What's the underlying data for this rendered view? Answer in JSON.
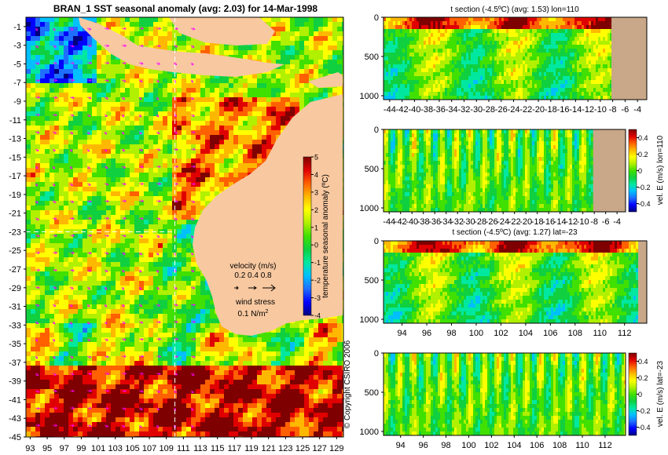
{
  "colors": {
    "land": "#f8c8a0",
    "land_section": "#c8a888",
    "bg": "#ffffff",
    "text": "#000000",
    "dashed": "#ffffff",
    "vector": "#ff00ff",
    "vector_key": "#000000",
    "palette": [
      "#00007f",
      "#0000ff",
      "#1f6fff",
      "#00c0ff",
      "#00e8a0",
      "#10d040",
      "#40e000",
      "#b0f000",
      "#ffff00",
      "#ffb800",
      "#ff6000",
      "#e00000",
      "#7f0000"
    ]
  },
  "chart_data": [
    {
      "id": "map",
      "type": "heatmap",
      "title": "BRAN_1  SST seasonal anomaly (avg: 2.03) for 14-Mar-1998",
      "y_ticks": [
        "-1",
        "-3",
        "-5",
        "-7",
        "-9",
        "-11",
        "-13",
        "-15",
        "-17",
        "-19",
        "-21",
        "-23",
        "-25",
        "-27",
        "-29",
        "-31",
        "-33",
        "-35",
        "-37",
        "-39",
        "-41",
        "-43",
        "-45"
      ],
      "y_tick_values": [
        -1,
        -3,
        -5,
        -7,
        -9,
        -11,
        -13,
        -15,
        -17,
        -19,
        -21,
        -23,
        -25,
        -27,
        -29,
        -31,
        -33,
        -35,
        -37,
        -39,
        -41,
        -43,
        -45
      ],
      "x_ticks": [
        "93",
        "95",
        "97",
        "99",
        "101",
        "103",
        "105",
        "107",
        "109",
        "111",
        "113",
        "115",
        "117",
        "119",
        "121",
        "123",
        "125",
        "127",
        "129"
      ],
      "x_tick_values": [
        93,
        95,
        97,
        99,
        101,
        103,
        105,
        107,
        109,
        111,
        113,
        115,
        117,
        119,
        121,
        123,
        125,
        127,
        129
      ],
      "xlim": [
        92.5,
        129.8
      ],
      "ylim": [
        -45,
        0
      ],
      "dashed_lon": 110,
      "dashed_lat": -23,
      "colorbar": {
        "label": "temperature seasonal anomaly (ºC)",
        "ticks": [
          "5",
          "4",
          "3",
          "2",
          "1",
          "0",
          "-1",
          "-2",
          "-3",
          "-4"
        ],
        "tick_values": [
          5,
          4,
          3,
          2,
          1,
          0,
          -1,
          -2,
          -3,
          -4
        ],
        "range": [
          -4,
          5
        ]
      },
      "legend": {
        "velocity_label": "velocity (m/s)",
        "velocity_values": "0.2 0.4 0.8",
        "wind_label": "wind stress",
        "wind_value": "0.1 N/m",
        "wind_superscript": "2"
      },
      "copyright": "© Copyright CSIRO 2006"
    },
    {
      "id": "t-section-lon",
      "type": "heatmap",
      "title": "t section (-4.5ºC) (avg: 1.53) lon=110",
      "x_ticks": [
        "-44",
        "-42",
        "-40",
        "-38",
        "-36",
        "-34",
        "-32",
        "-30",
        "-28",
        "-26",
        "-24",
        "-22",
        "-20",
        "-18",
        "-16",
        "-14",
        "-12",
        "-10",
        "-8",
        "-6",
        "-4"
      ],
      "x_tick_values": [
        -44,
        -42,
        -40,
        -38,
        -36,
        -34,
        -32,
        -30,
        -28,
        -26,
        -24,
        -22,
        -20,
        -18,
        -16,
        -14,
        -12,
        -10,
        -8,
        -6,
        -4
      ],
      "xlim": [
        -45,
        -2.5
      ],
      "y_ticks": [
        "0",
        "500",
        "1000"
      ],
      "y_tick_values": [
        0,
        500,
        1000
      ],
      "ylim": [
        0,
        1050
      ],
      "land_from_x": -8.2
    },
    {
      "id": "vel-section-lon",
      "type": "heatmap",
      "title": "",
      "x_ticks": [
        "-44",
        "-42",
        "-40",
        "-38",
        "-36",
        "-34",
        "-32",
        "-30",
        "-28",
        "-26",
        "-24",
        "-22",
        "-20",
        "-18",
        "-16",
        "-14",
        "-12",
        "-10",
        "-8",
        "-6",
        "-4"
      ],
      "x_tick_values": [
        -44,
        -42,
        -40,
        -38,
        -36,
        -34,
        -32,
        -30,
        -28,
        -26,
        -24,
        -22,
        -20,
        -18,
        -16,
        -14,
        -12,
        -10,
        -8,
        -6,
        -4
      ],
      "xlim": [
        -45,
        -2.5
      ],
      "y_ticks": [
        "0",
        "500",
        "1000"
      ],
      "y_tick_values": [
        0,
        500,
        1000
      ],
      "ylim": [
        0,
        1050
      ],
      "land_from_x": -8.2,
      "colorbar": {
        "label": "vel. E (m/s) lon=110",
        "ticks": [
          "0.4",
          "0.2",
          "0",
          "-0.2",
          "-0.4"
        ],
        "tick_values": [
          0.4,
          0.2,
          0,
          -0.2,
          -0.4
        ],
        "range": [
          -0.5,
          0.5
        ]
      }
    },
    {
      "id": "t-section-lat",
      "type": "heatmap",
      "title": "t section (-4.5ºC) (avg: 1.27) lat=-23",
      "x_ticks": [
        "94",
        "96",
        "98",
        "100",
        "102",
        "104",
        "106",
        "108",
        "110",
        "112"
      ],
      "x_tick_values": [
        94,
        96,
        98,
        100,
        102,
        104,
        106,
        108,
        110,
        112
      ],
      "xlim": [
        92.5,
        113.8
      ],
      "y_ticks": [
        "0",
        "500",
        "1000"
      ],
      "y_tick_values": [
        0,
        500,
        1000
      ],
      "ylim": [
        0,
        1050
      ],
      "land_from_x": 113.1
    },
    {
      "id": "vel-section-lat",
      "type": "heatmap",
      "title": "",
      "x_ticks": [
        "94",
        "96",
        "98",
        "100",
        "102",
        "104",
        "106",
        "108",
        "110",
        "112"
      ],
      "x_tick_values": [
        94,
        96,
        98,
        100,
        102,
        104,
        106,
        108,
        110,
        112
      ],
      "xlim": [
        92.5,
        113.8
      ],
      "y_ticks": [
        "0",
        "500",
        "1000"
      ],
      "y_tick_values": [
        0,
        500,
        1000
      ],
      "ylim": [
        0,
        1050
      ],
      "colorbar": {
        "label": "vel. E (m/s) lat=-23",
        "ticks": [
          "0.4",
          "0.2",
          "0",
          "-0.2",
          "-0.4"
        ],
        "tick_values": [
          0.4,
          0.2,
          0,
          -0.2,
          -0.4
        ],
        "range": [
          -0.5,
          0.5
        ]
      }
    }
  ]
}
